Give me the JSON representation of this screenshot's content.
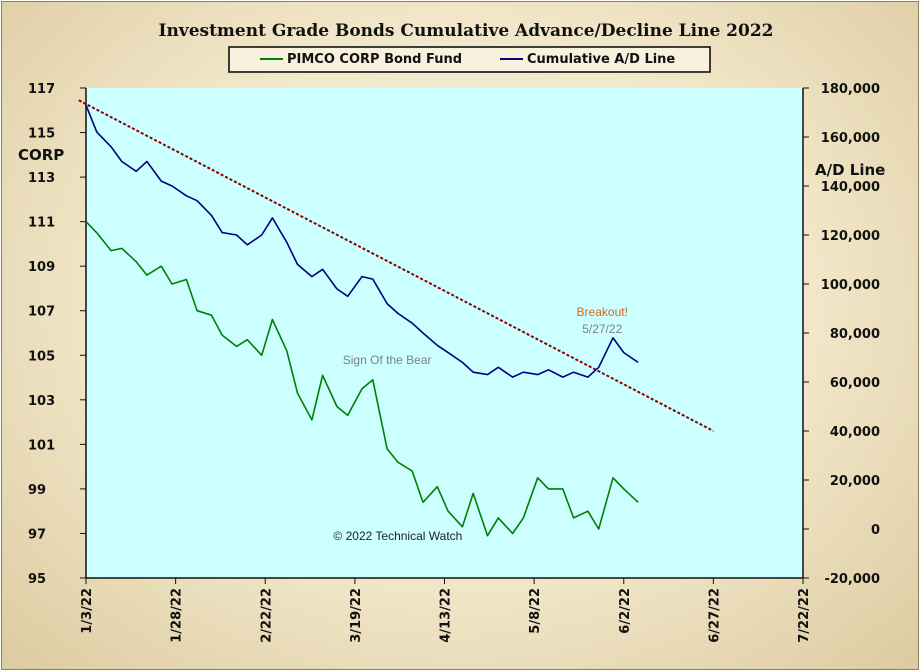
{
  "chart_data": {
    "type": "line",
    "title": "Investment Grade Bonds Cumulative  Advance/Decline  Line  2022",
    "y_left_label": "CORP",
    "y_right_label": "A/D Line",
    "y_left_range": [
      95,
      117
    ],
    "y_right_range": [
      -20000,
      180000
    ],
    "y_left_ticks": [
      "117",
      "115",
      "113",
      "111",
      "109",
      "107",
      "105",
      "103",
      "101",
      "99",
      "97",
      "95"
    ],
    "y_right_ticks": [
      "180,000",
      "160,000",
      "140,000",
      "120,000",
      "100,000",
      "80,000",
      "60,000",
      "40,000",
      "20,000",
      "0",
      "-20,000"
    ],
    "x_ticks": [
      "1/3/22",
      "1/28/22",
      "2/22/22",
      "3/19/22",
      "4/13/22",
      "5/8/22",
      "6/2/22",
      "6/27/22",
      "7/22/22"
    ],
    "x_range": [
      "2022-01-03",
      "2022-07-22"
    ],
    "grid": false,
    "legend_position": "top-center",
    "colors": {
      "plot_bg": "#ccffff",
      "corp": "#008000",
      "ad": "#000080",
      "trend": "#8b0000",
      "breakout": "#d2691e",
      "annotation": "#808080"
    },
    "series": [
      {
        "name": "PIMCO CORP Bond Fund",
        "axis": "left",
        "x": [
          "2022-01-03",
          "2022-01-06",
          "2022-01-10",
          "2022-01-13",
          "2022-01-17",
          "2022-01-20",
          "2022-01-24",
          "2022-01-27",
          "2022-01-31",
          "2022-02-03",
          "2022-02-07",
          "2022-02-10",
          "2022-02-14",
          "2022-02-17",
          "2022-02-21",
          "2022-02-24",
          "2022-02-28",
          "2022-03-03",
          "2022-03-07",
          "2022-03-10",
          "2022-03-14",
          "2022-03-17",
          "2022-03-21",
          "2022-03-24",
          "2022-03-28",
          "2022-03-31",
          "2022-04-04",
          "2022-04-07",
          "2022-04-11",
          "2022-04-14",
          "2022-04-18",
          "2022-04-21",
          "2022-04-25",
          "2022-04-28",
          "2022-05-02",
          "2022-05-05",
          "2022-05-09",
          "2022-05-12",
          "2022-05-16",
          "2022-05-19",
          "2022-05-23",
          "2022-05-26",
          "2022-05-30",
          "2022-06-02",
          "2022-06-06"
        ],
        "values": [
          111.0,
          110.5,
          109.7,
          109.8,
          109.2,
          108.6,
          109.0,
          108.2,
          108.4,
          107.0,
          106.8,
          105.9,
          105.4,
          105.7,
          105.0,
          106.6,
          105.2,
          103.3,
          102.1,
          104.1,
          102.7,
          102.3,
          103.5,
          103.9,
          100.8,
          100.2,
          99.8,
          98.4,
          99.1,
          98.0,
          97.3,
          98.8,
          96.9,
          97.7,
          97.0,
          97.7,
          99.5,
          99.0,
          99.0,
          97.7,
          98.0,
          97.2,
          99.5,
          99.0,
          98.4
        ]
      },
      {
        "name": "Cumulative A/D Line",
        "axis": "right",
        "x": [
          "2022-01-03",
          "2022-01-06",
          "2022-01-10",
          "2022-01-13",
          "2022-01-17",
          "2022-01-20",
          "2022-01-24",
          "2022-01-27",
          "2022-01-31",
          "2022-02-03",
          "2022-02-07",
          "2022-02-10",
          "2022-02-14",
          "2022-02-17",
          "2022-02-21",
          "2022-02-24",
          "2022-02-28",
          "2022-03-03",
          "2022-03-07",
          "2022-03-10",
          "2022-03-14",
          "2022-03-17",
          "2022-03-21",
          "2022-03-24",
          "2022-03-28",
          "2022-03-31",
          "2022-04-04",
          "2022-04-07",
          "2022-04-11",
          "2022-04-14",
          "2022-04-18",
          "2022-04-21",
          "2022-04-25",
          "2022-04-28",
          "2022-05-02",
          "2022-05-05",
          "2022-05-09",
          "2022-05-12",
          "2022-05-16",
          "2022-05-19",
          "2022-05-23",
          "2022-05-26",
          "2022-05-30",
          "2022-06-02",
          "2022-06-06"
        ],
        "values": [
          173000,
          162000,
          156000,
          150000,
          146000,
          150000,
          142000,
          140000,
          136000,
          134000,
          128000,
          121000,
          120000,
          116000,
          120000,
          127000,
          117000,
          108000,
          103000,
          106000,
          98000,
          95000,
          103000,
          102000,
          92000,
          88000,
          84000,
          80000,
          75000,
          72000,
          68000,
          64000,
          63000,
          66000,
          62000,
          64000,
          63000,
          65000,
          62000,
          64000,
          62000,
          66000,
          78000,
          72000,
          68000
        ]
      },
      {
        "name": "",
        "style": "dotted trendline",
        "axis": "right",
        "x": [
          "2022-01-01",
          "2022-06-27"
        ],
        "values": [
          175000,
          40000
        ]
      }
    ],
    "annotations": [
      {
        "text": "Breakout!",
        "x": "2022-05-27",
        "y_right": 87000,
        "color": "#d2691e"
      },
      {
        "text": "5/27/22",
        "x": "2022-05-27",
        "y_right": 80000,
        "color": "#808080"
      },
      {
        "text": "Sign Of the Bear",
        "x": "2022-03-28",
        "y_left": 104.6,
        "color": "#808080"
      },
      {
        "text": "© 2022 Technical Watch",
        "x": "2022-03-31",
        "y_left": 96.7,
        "color": "#222222"
      }
    ]
  }
}
